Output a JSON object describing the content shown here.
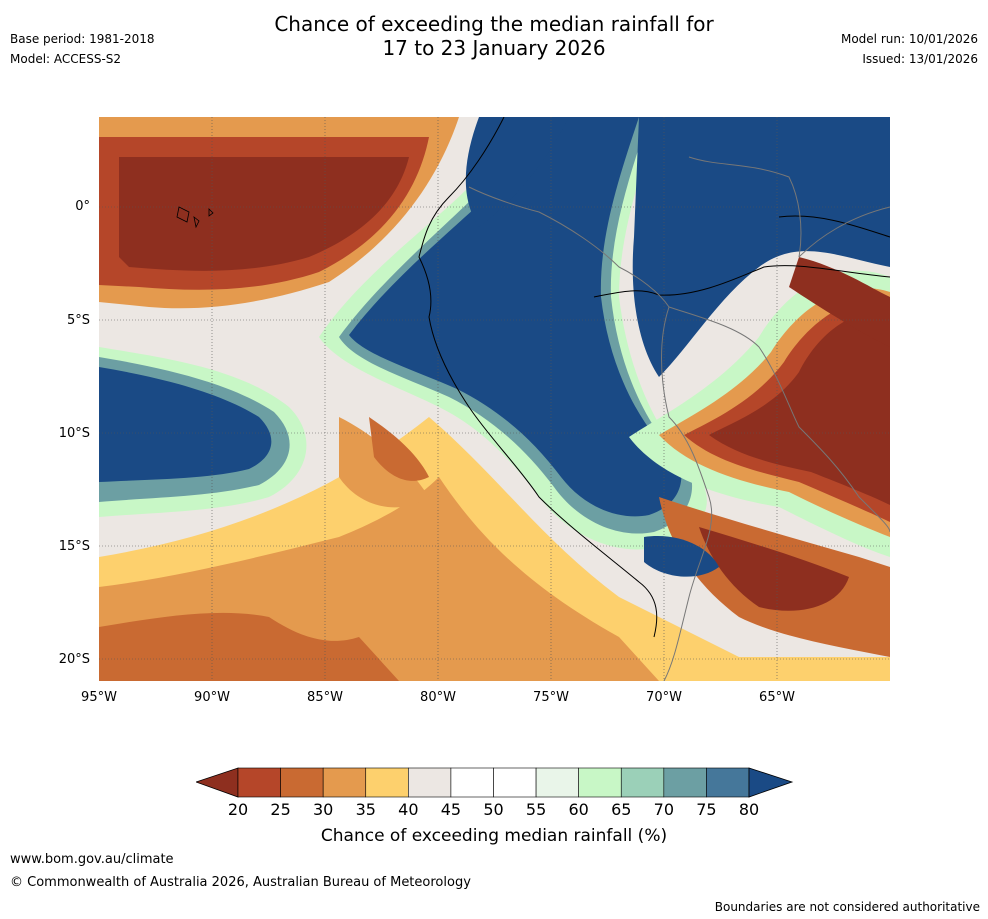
{
  "header": {
    "title_line1": "Chance of exceeding the median rainfall for",
    "title_line2": "17 to 23 January 2026",
    "base_period": "Base period: 1981-2018",
    "model": "Model: ACCESS-S2",
    "model_run": "Model run: 10/01/2026",
    "issued": "Issued: 13/01/2026"
  },
  "map": {
    "lat_labels": [
      "0°",
      "5°S",
      "10°S",
      "15°S",
      "20°S"
    ],
    "lon_labels": [
      "95°W",
      "90°W",
      "85°W",
      "80°W",
      "75°W",
      "70°W",
      "65°W"
    ],
    "colors": {
      "c20": "#8e2f1f",
      "c25": "#b54629",
      "c30": "#c96a32",
      "c35": "#e49a4e",
      "c40": "#fdd06d",
      "c45": "#ece7e3",
      "c50": "#ffffff",
      "c55": "#ffffff",
      "c60": "#e9f5e9",
      "c65": "#c8f7c6",
      "c70": "#9bd0b8",
      "c75": "#6c9fa3",
      "c78": "#45779a",
      "c80": "#1a4a85"
    }
  },
  "colorbar": {
    "ticks": [
      "20",
      "25",
      "30",
      "35",
      "40",
      "45",
      "50",
      "55",
      "60",
      "65",
      "70",
      "75",
      "80"
    ],
    "segments": [
      "#8e2f1f",
      "#b54629",
      "#c96a32",
      "#e49a4e",
      "#fdd06d",
      "#ece7e3",
      "#ffffff",
      "#ffffff",
      "#e9f5e9",
      "#c8f7c6",
      "#9bd0b8",
      "#6c9fa3",
      "#45779a",
      "#1a4a85"
    ],
    "label": "Chance of exceeding median rainfall (%)"
  },
  "footer": {
    "url": "www.bom.gov.au/climate",
    "copyright": "© Commonwealth of Australia 2026, Australian Bureau of Meteorology",
    "disclaimer": "Boundaries are not considered authoritative"
  }
}
